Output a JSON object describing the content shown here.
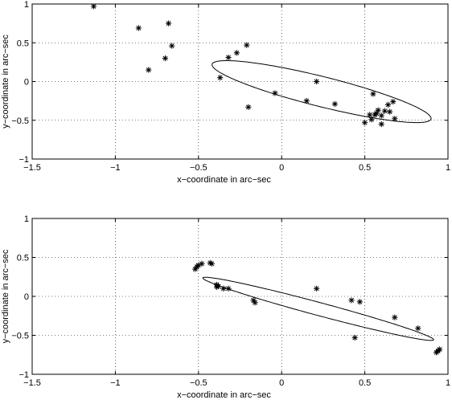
{
  "chart_data": [
    {
      "type": "scatter",
      "xlabel": "x−coordinate in arc−sec",
      "ylabel": "y−coordinate in arc−sec",
      "xlim": [
        -1.5,
        1
      ],
      "ylim": [
        -1,
        1
      ],
      "xticks": [
        -1.5,
        -1,
        -0.5,
        0,
        0.5,
        1
      ],
      "xtick_labels": [
        "−1.5",
        "−1",
        "−0.5",
        "0",
        "0.5",
        "1"
      ],
      "yticks": [
        -1,
        -0.5,
        0,
        0.5,
        1
      ],
      "ytick_labels": [
        "−1",
        "−0.5",
        "0",
        "0.5",
        "1"
      ],
      "grid": true,
      "marker": "asterisk",
      "ellipse": {
        "cx": 0.24,
        "cy": -0.13,
        "a": 0.75,
        "b": 0.175,
        "angle_deg": -29.5
      },
      "points": [
        [
          -1.13,
          0.97
        ],
        [
          -0.86,
          0.69
        ],
        [
          -0.8,
          0.15
        ],
        [
          -0.7,
          0.3
        ],
        [
          -0.68,
          0.75
        ],
        [
          -0.66,
          0.46
        ],
        [
          -0.37,
          0.05
        ],
        [
          -0.32,
          0.31
        ],
        [
          -0.27,
          0.37
        ],
        [
          -0.21,
          0.47
        ],
        [
          -0.2,
          -0.33
        ],
        [
          -0.04,
          -0.15
        ],
        [
          0.15,
          -0.25
        ],
        [
          0.21,
          0.0
        ],
        [
          0.32,
          -0.29
        ],
        [
          0.5,
          -0.53
        ],
        [
          0.53,
          -0.43
        ],
        [
          0.54,
          -0.49
        ],
        [
          0.55,
          -0.16
        ],
        [
          0.56,
          -0.43
        ],
        [
          0.57,
          -0.41
        ],
        [
          0.58,
          -0.37
        ],
        [
          0.6,
          -0.44
        ],
        [
          0.6,
          -0.55
        ],
        [
          0.62,
          -0.38
        ],
        [
          0.64,
          -0.3
        ],
        [
          0.65,
          -0.39
        ],
        [
          0.67,
          -0.26
        ],
        [
          0.68,
          -0.48
        ]
      ]
    },
    {
      "type": "scatter",
      "xlabel": "x−coordinate in arc−sec",
      "ylabel": "y−coordinate in arc−sec",
      "xlim": [
        -1.5,
        1
      ],
      "ylim": [
        -1,
        1
      ],
      "xticks": [
        -1.5,
        -1,
        -0.5,
        0,
        0.5,
        1
      ],
      "xtick_labels": [
        "−1.5",
        "−1",
        "−0.5",
        "0",
        "0.5",
        "1"
      ],
      "yticks": [
        -1,
        -0.5,
        0,
        0.5,
        1
      ],
      "ytick_labels": [
        "−1",
        "−0.5",
        "0",
        "0.5",
        "1"
      ],
      "grid": true,
      "marker": "asterisk",
      "ellipse": {
        "cx": 0.22,
        "cy": -0.16,
        "a": 0.8,
        "b": 0.075,
        "angle_deg": -30
      },
      "points": [
        [
          -0.52,
          0.35
        ],
        [
          -0.51,
          0.38
        ],
        [
          -0.5,
          0.4
        ],
        [
          -0.48,
          0.42
        ],
        [
          -0.43,
          0.43
        ],
        [
          -0.42,
          0.42
        ],
        [
          -0.39,
          0.15
        ],
        [
          -0.39,
          0.12
        ],
        [
          -0.38,
          0.13
        ],
        [
          -0.35,
          0.1
        ],
        [
          -0.32,
          0.1
        ],
        [
          -0.17,
          -0.05
        ],
        [
          -0.16,
          -0.08
        ],
        [
          0.21,
          0.1
        ],
        [
          0.42,
          -0.05
        ],
        [
          0.44,
          -0.53
        ],
        [
          0.47,
          -0.07
        ],
        [
          0.68,
          -0.27
        ],
        [
          0.82,
          -0.41
        ],
        [
          0.93,
          -0.72
        ],
        [
          0.94,
          -0.7
        ],
        [
          0.95,
          -0.68
        ]
      ]
    }
  ]
}
